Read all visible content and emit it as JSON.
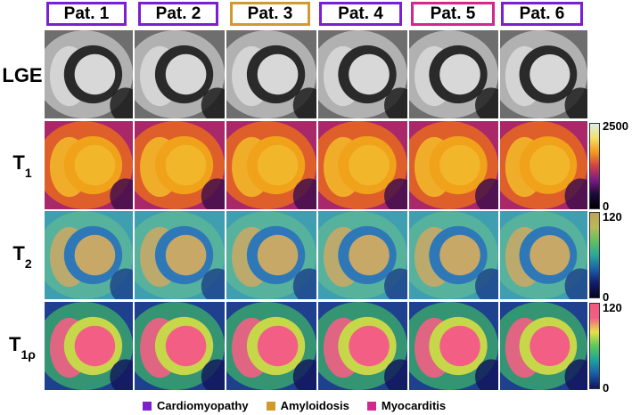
{
  "patients": [
    {
      "label": "Pat. 1",
      "category": "cardiomyopathy"
    },
    {
      "label": "Pat. 2",
      "category": "cardiomyopathy"
    },
    {
      "label": "Pat. 3",
      "category": "amyloidosis"
    },
    {
      "label": "Pat. 4",
      "category": "cardiomyopathy"
    },
    {
      "label": "Pat. 5",
      "category": "myocarditis"
    },
    {
      "label": "Pat. 6",
      "category": "cardiomyopathy"
    }
  ],
  "rows": {
    "lge": {
      "label": "LGE"
    },
    "t1": {
      "label": "T",
      "sub": "1",
      "cbar_max": "2500",
      "cbar_min": "0"
    },
    "t2": {
      "label": "T",
      "sub": "2",
      "cbar_max": "120",
      "cbar_min": "0"
    },
    "t1rho": {
      "label": "T",
      "sub": "1ρ",
      "cbar_max": "120",
      "cbar_min": "0"
    }
  },
  "legend": {
    "cardiomyopathy": {
      "label": "Cardiomyopathy",
      "color": "#7b1fd1"
    },
    "amyloidosis": {
      "label": "Amyloidosis",
      "color": "#d29a2c"
    },
    "myocarditis": {
      "label": "Myocarditis",
      "color": "#d1288f"
    }
  }
}
